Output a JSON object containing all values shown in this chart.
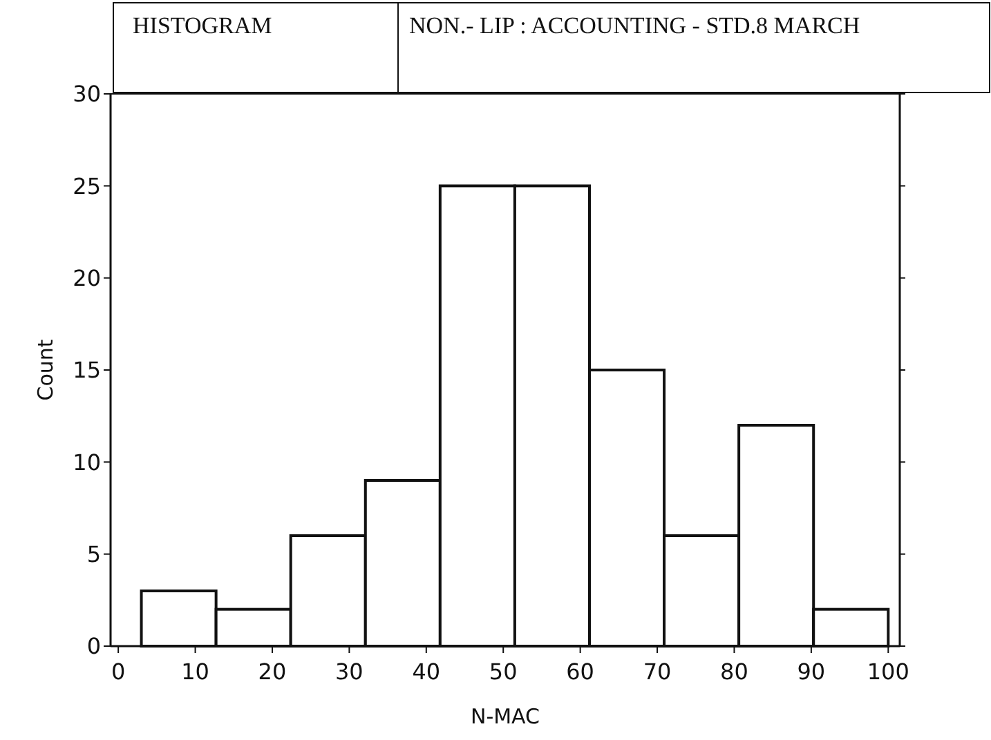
{
  "chart_data": {
    "type": "histogram",
    "title": "HISTOGRAM",
    "subtitle": "NON.- LIP : ACCOUNTING - STD.8 MARCH",
    "xlabel": "N-MAC",
    "ylabel": "Count",
    "bins": [
      3,
      12.7,
      22.4,
      32.1,
      41.8,
      51.5,
      61.2,
      70.9,
      80.6,
      90.3,
      100
    ],
    "values": [
      3,
      2,
      6,
      9,
      25,
      25,
      15,
      6,
      12,
      2
    ],
    "color": "#ffffff",
    "xlim": [
      -1,
      101.5
    ],
    "xticks": [
      0,
      10,
      20,
      30,
      40,
      50,
      60,
      70,
      80,
      90,
      100
    ],
    "ylim": [
      0,
      30
    ],
    "yticks": [
      0,
      5,
      10,
      15,
      20,
      25,
      30
    ],
    "grid": false
  }
}
